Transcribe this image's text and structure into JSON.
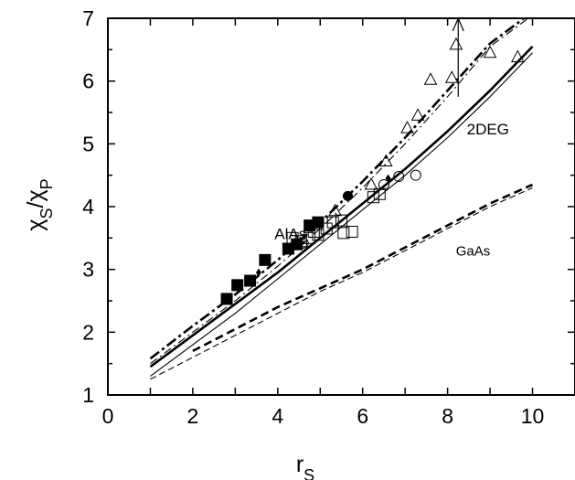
{
  "chart_data": {
    "type": "line",
    "title": "",
    "xlabel": {
      "base": "r",
      "sub": "S"
    },
    "ylabel": {
      "num": "χ",
      "num_sub": "S",
      "sep": "/",
      "den": "χ",
      "den_sub": "P"
    },
    "xlim": [
      0,
      11
    ],
    "ylim": [
      1,
      7
    ],
    "xticks": [
      0,
      2,
      4,
      6,
      8,
      10
    ],
    "yticks": [
      1,
      2,
      3,
      4,
      5,
      6,
      7
    ],
    "grid": false,
    "annotations": [
      {
        "id": "2deg",
        "text": "2DEG",
        "x": 8.95,
        "y": 5.15,
        "size": "normal"
      },
      {
        "id": "alas",
        "text": "AlAs",
        "x": 4.3,
        "y": 3.48,
        "size": "normal"
      },
      {
        "id": "gaas",
        "text": "GaAs",
        "x": 8.6,
        "y": 3.22,
        "size": "small"
      }
    ],
    "arrow": {
      "x": 8.25,
      "y_from": 5.75,
      "y_to": 7.0
    },
    "series": [
      {
        "style": "thick-solid",
        "x": [
          1,
          2,
          3,
          4,
          5,
          6,
          7,
          8,
          9,
          10
        ],
        "y": [
          1.45,
          1.95,
          2.45,
          2.95,
          3.5,
          4.05,
          4.6,
          5.2,
          5.85,
          6.55
        ]
      },
      {
        "style": "thin-solid",
        "x": [
          1,
          2,
          3,
          4,
          5,
          6,
          7,
          8,
          9,
          10
        ],
        "y": [
          1.3,
          1.8,
          2.3,
          2.85,
          3.4,
          3.95,
          4.5,
          5.1,
          5.75,
          6.45
        ]
      },
      {
        "style": "thick-dashdot",
        "x": [
          1,
          2,
          3,
          4,
          5,
          6,
          7,
          8,
          9,
          9.8
        ],
        "y": [
          1.58,
          2.1,
          2.6,
          3.15,
          3.75,
          4.4,
          5.1,
          5.85,
          6.6,
          7.0
        ]
      },
      {
        "style": "thin-dashdot",
        "x": [
          1,
          2,
          3,
          4,
          5,
          6,
          7,
          8,
          9,
          9.9
        ],
        "y": [
          1.5,
          2.0,
          2.5,
          3.05,
          3.65,
          4.3,
          5.0,
          5.75,
          6.55,
          7.0
        ]
      },
      {
        "style": "thick-dashed",
        "x": [
          2,
          3,
          4,
          5,
          6,
          7,
          8,
          9,
          10
        ],
        "y": [
          1.7,
          2.05,
          2.4,
          2.7,
          3.0,
          3.35,
          3.7,
          4.05,
          4.35
        ]
      },
      {
        "style": "thin-dashed",
        "x": [
          1,
          2,
          3,
          4,
          5,
          6,
          7,
          8,
          9,
          10
        ],
        "y": [
          1.25,
          1.6,
          1.95,
          2.3,
          2.65,
          2.95,
          3.3,
          3.65,
          4.0,
          4.3
        ]
      }
    ],
    "points": {
      "filled_squares": [
        [
          2.8,
          2.53
        ],
        [
          3.05,
          2.75
        ],
        [
          3.35,
          2.82
        ],
        [
          3.7,
          3.15
        ],
        [
          4.25,
          3.33
        ],
        [
          4.45,
          3.4
        ],
        [
          4.75,
          3.7
        ],
        [
          4.95,
          3.75
        ]
      ],
      "open_squares": [
        [
          4.35,
          3.5
        ],
        [
          4.55,
          3.45
        ],
        [
          4.75,
          3.5
        ],
        [
          4.85,
          3.6
        ],
        [
          4.95,
          3.55
        ],
        [
          5.15,
          3.65
        ],
        [
          5.3,
          3.75
        ],
        [
          5.55,
          3.58
        ],
        [
          5.75,
          3.6
        ],
        [
          5.5,
          3.78
        ],
        [
          6.25,
          4.15
        ],
        [
          6.4,
          4.2
        ]
      ],
      "open_triangles": [
        [
          5.35,
          3.93
        ],
        [
          6.2,
          4.35
        ],
        [
          6.55,
          4.72
        ],
        [
          7.05,
          5.25
        ],
        [
          7.3,
          5.45
        ],
        [
          7.6,
          6.02
        ],
        [
          8.1,
          6.05
        ],
        [
          8.2,
          6.58
        ],
        [
          9.0,
          6.45
        ],
        [
          9.65,
          6.38
        ]
      ],
      "open_circles": [
        [
          6.5,
          4.35
        ],
        [
          6.85,
          4.48
        ],
        [
          7.25,
          4.5
        ]
      ],
      "filled_circles": [
        [
          5.65,
          4.17
        ]
      ],
      "filled_diamonds": [
        [
          3.55,
          2.95
        ],
        [
          4.3,
          3.28
        ],
        [
          6.6,
          4.45
        ]
      ],
      "open_circle_dots": [
        [
          4.6,
          3.42
        ]
      ]
    }
  }
}
